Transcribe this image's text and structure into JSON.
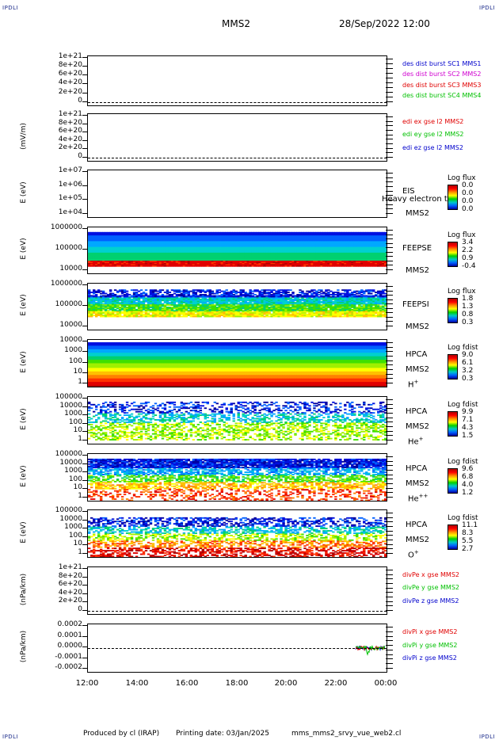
{
  "header": {
    "corner_label": "IPDLI",
    "spacecraft": "MMS2",
    "datetime": "28/Sep/2022 12:00"
  },
  "footer": {
    "produced_by": "Produced by cl (IRAP)",
    "printing_date": "Printing date: 03/Jan/2025",
    "filename": "mms_mms2_srvy_vue_web2.cl"
  },
  "chart_data": {
    "type": "multi-panel time series",
    "x_ticks": [
      "12:00",
      "14:00",
      "16:00",
      "18:00",
      "20:00",
      "22:00",
      "00:00"
    ],
    "panels": [
      {
        "id": "des-dist",
        "type": "line",
        "ylabel": "",
        "yticks": [
          "1e+21",
          "8e+20",
          "6e+20",
          "4e+20",
          "2e+20",
          "0"
        ],
        "legend": [
          {
            "name": "des dist burst SC1 MMS1",
            "color": "#0000cc"
          },
          {
            "name": "des dist burst SC2 MMS2",
            "color": "#d000d0"
          },
          {
            "name": "des dist burst SC3 MMS3",
            "color": "#e00000"
          },
          {
            "name": "des dist burst SC4 MMS4",
            "color": "#00c000"
          }
        ]
      },
      {
        "id": "edi",
        "type": "line",
        "ylabel": "(mV/m)",
        "yticks": [
          "1e+21",
          "8e+20",
          "6e+20",
          "4e+20",
          "2e+20",
          "0"
        ],
        "legend": [
          {
            "name": "edi ex gse l2 MMS2",
            "color": "#e00000"
          },
          {
            "name": "edi ey gse l2 MMS2",
            "color": "#00c000"
          },
          {
            "name": "edi ez gse l2 MMS2",
            "color": "#0000cc"
          }
        ]
      },
      {
        "id": "eis",
        "type": "heatmap",
        "ylabel": "E (eV)",
        "yticks": [
          "1e+07",
          "1e+06",
          "1e+05",
          "1e+04"
        ],
        "side": [
          "EIS",
          "MMS2"
        ],
        "overlay": "Heavy electron to",
        "cb_title": "Log flux",
        "cb_values": [
          "0.0",
          "0.0",
          "0.0",
          "0.0"
        ]
      },
      {
        "id": "feepse",
        "type": "heatmap",
        "ylabel": "E (eV)",
        "yticks": [
          "1000000",
          "100000",
          "10000"
        ],
        "side": [
          "FEEPSE",
          "MMS2"
        ],
        "cb_title": "Log flux",
        "cb_values": [
          "3.4",
          "2.2",
          "0.9",
          "-0.4"
        ]
      },
      {
        "id": "feepsi",
        "type": "heatmap",
        "ylabel": "E (eV)",
        "yticks": [
          "1000000",
          "100000",
          "10000"
        ],
        "side": [
          "FEEPSI",
          "MMS2"
        ],
        "cb_title": "Log flux",
        "cb_values": [
          "1.8",
          "1.3",
          "0.8",
          "0.3"
        ]
      },
      {
        "id": "hpca-h",
        "type": "heatmap",
        "ylabel": "E (eV)",
        "yticks": [
          "10000",
          "1000",
          "100",
          "10",
          "1"
        ],
        "side": [
          "HPCA",
          "MMS2",
          "H",
          "+"
        ],
        "cb_title": "Log fdist",
        "cb_values": [
          "9.0",
          "6.1",
          "3.2",
          "0.3"
        ]
      },
      {
        "id": "hpca-he",
        "type": "heatmap",
        "ylabel": "E (eV)",
        "yticks": [
          "100000",
          "10000",
          "1000",
          "100",
          "10",
          "1"
        ],
        "side": [
          "HPCA",
          "MMS2",
          "He",
          "+"
        ],
        "cb_title": "Log fdist",
        "cb_values": [
          "9.9",
          "7.1",
          "4.3",
          "1.5"
        ]
      },
      {
        "id": "hpca-hepp",
        "type": "heatmap",
        "ylabel": "E (eV)",
        "yticks": [
          "100000",
          "10000",
          "1000",
          "100",
          "10",
          "1"
        ],
        "side": [
          "HPCA",
          "MMS2",
          "He",
          "++"
        ],
        "cb_title": "Log fdist",
        "cb_values": [
          "9.6",
          "6.8",
          "4.0",
          "1.2"
        ]
      },
      {
        "id": "hpca-o",
        "type": "heatmap",
        "ylabel": "E (eV)",
        "yticks": [
          "100000",
          "10000",
          "1000",
          "100",
          "10",
          "1"
        ],
        "side": [
          "HPCA",
          "MMS2",
          "O",
          "+"
        ],
        "cb_title": "Log fdist",
        "cb_values": [
          "11.1",
          "8.3",
          "5.5",
          "2.7"
        ]
      },
      {
        "id": "divpe",
        "type": "line",
        "ylabel": "(nPa/km)",
        "yticks": [
          "1e+21",
          "8e+20",
          "6e+20",
          "4e+20",
          "2e+20",
          "0"
        ],
        "legend": [
          {
            "name": "divPe x gse MMS2",
            "color": "#e00000"
          },
          {
            "name": "divPe y gse MMS2",
            "color": "#00c000"
          },
          {
            "name": "divPe z gse MMS2",
            "color": "#0000cc"
          }
        ]
      },
      {
        "id": "divpi",
        "type": "line",
        "ylabel": "(nPa/km)",
        "yticks": [
          "0.0002",
          "0.0001",
          "0.0000",
          "-0.0001",
          "-0.0002"
        ],
        "legend": [
          {
            "name": "divPi x gse MMS2",
            "color": "#e00000"
          },
          {
            "name": "divPi y gse MMS2",
            "color": "#00c000"
          },
          {
            "name": "divPi z gse MMS2",
            "color": "#0000cc"
          }
        ]
      }
    ]
  }
}
